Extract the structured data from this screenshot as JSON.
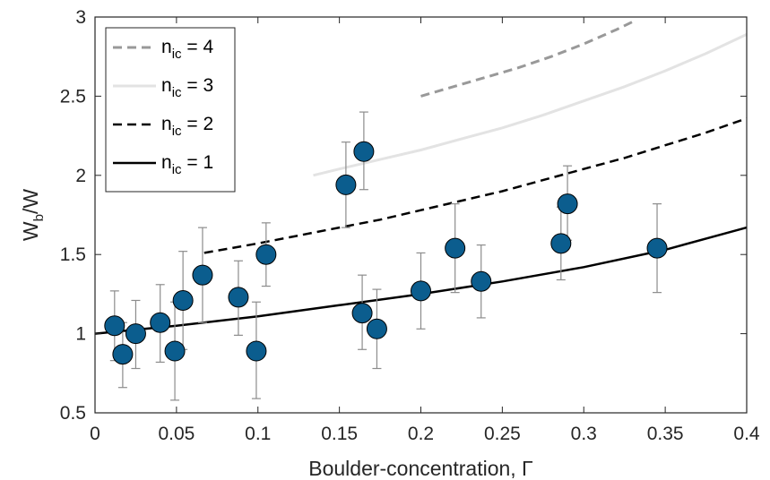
{
  "chart_data": {
    "type": "scatter",
    "xlabel": "Boulder-concentration, Γ",
    "ylabel": {
      "main": "W",
      "sub": "b",
      "tail": "/W"
    },
    "xlim": [
      0,
      0.4
    ],
    "ylim": [
      0.5,
      3
    ],
    "xticks": [
      0,
      0.05,
      0.1,
      0.15,
      0.2,
      0.25,
      0.3,
      0.35,
      0.4
    ],
    "xtick_labels": [
      "0",
      "0.05",
      "0.1",
      "0.15",
      "0.2",
      "0.25",
      "0.3",
      "0.35",
      "0.4"
    ],
    "yticks": [
      0.5,
      1,
      1.5,
      2,
      2.5,
      3
    ],
    "ytick_labels": [
      "0.5",
      "1",
      "1.5",
      "2",
      "2.5",
      "3"
    ],
    "grid": false,
    "legend_position": "top-left",
    "marker_color": "#0b5d8e",
    "errorbar_color": "#8c8c8c",
    "points": [
      {
        "x": 0.012,
        "y": 1.05,
        "lo": 0.83,
        "hi": 1.27
      },
      {
        "x": 0.017,
        "y": 0.87,
        "lo": 0.66,
        "hi": 1.07
      },
      {
        "x": 0.025,
        "y": 1.0,
        "lo": 0.78,
        "hi": 1.21
      },
      {
        "x": 0.04,
        "y": 1.07,
        "lo": 0.82,
        "hi": 1.31
      },
      {
        "x": 0.049,
        "y": 0.89,
        "lo": 0.58,
        "hi": 1.2
      },
      {
        "x": 0.054,
        "y": 1.21,
        "lo": 0.9,
        "hi": 1.52
      },
      {
        "x": 0.066,
        "y": 1.37,
        "lo": 1.07,
        "hi": 1.67
      },
      {
        "x": 0.088,
        "y": 1.23,
        "lo": 0.99,
        "hi": 1.46
      },
      {
        "x": 0.099,
        "y": 0.89,
        "lo": 0.59,
        "hi": 1.2
      },
      {
        "x": 0.105,
        "y": 1.5,
        "lo": 1.3,
        "hi": 1.7
      },
      {
        "x": 0.154,
        "y": 1.94,
        "lo": 1.67,
        "hi": 2.21
      },
      {
        "x": 0.164,
        "y": 1.13,
        "lo": 0.9,
        "hi": 1.37
      },
      {
        "x": 0.165,
        "y": 2.15,
        "lo": 1.91,
        "hi": 2.4
      },
      {
        "x": 0.173,
        "y": 1.03,
        "lo": 0.78,
        "hi": 1.28
      },
      {
        "x": 0.2,
        "y": 1.27,
        "lo": 1.03,
        "hi": 1.51
      },
      {
        "x": 0.221,
        "y": 1.54,
        "lo": 1.26,
        "hi": 1.82
      },
      {
        "x": 0.237,
        "y": 1.33,
        "lo": 1.1,
        "hi": 1.56
      },
      {
        "x": 0.286,
        "y": 1.57,
        "lo": 1.34,
        "hi": 1.8
      },
      {
        "x": 0.29,
        "y": 1.82,
        "lo": 1.59,
        "hi": 2.06
      },
      {
        "x": 0.345,
        "y": 1.54,
        "lo": 1.26,
        "hi": 1.82
      }
    ],
    "series": [
      {
        "name": "n_ic = 4",
        "n_ic": 4,
        "label": {
          "pre": "n",
          "sub": "ic",
          "post": " = 4"
        },
        "color": "#999999",
        "dash": "dashed",
        "stroke": 3,
        "x": [
          0.2,
          0.22,
          0.24,
          0.26,
          0.28,
          0.3,
          0.32,
          0.33
        ],
        "y": [
          2.5,
          2.56,
          2.62,
          2.68,
          2.75,
          2.83,
          2.92,
          2.97
        ]
      },
      {
        "name": "n_ic = 3",
        "n_ic": 3,
        "label": {
          "pre": "n",
          "sub": "ic",
          "post": " = 3"
        },
        "color": "#e3e3e3",
        "dash": "solid",
        "stroke": 3,
        "x": [
          0.134,
          0.15,
          0.175,
          0.2,
          0.225,
          0.25,
          0.275,
          0.3,
          0.325,
          0.35,
          0.375,
          0.4
        ],
        "y": [
          2.0,
          2.04,
          2.1,
          2.16,
          2.23,
          2.3,
          2.38,
          2.47,
          2.56,
          2.66,
          2.77,
          2.89
        ]
      },
      {
        "name": "n_ic = 2",
        "n_ic": 2,
        "label": {
          "pre": "n",
          "sub": "ic",
          "post": " = 2"
        },
        "color": "#000000",
        "dash": "dashed",
        "stroke": 2.5,
        "x": [
          0.067,
          0.1,
          0.125,
          0.15,
          0.175,
          0.2,
          0.225,
          0.25,
          0.275,
          0.3,
          0.325,
          0.35,
          0.375,
          0.4
        ],
        "y": [
          1.51,
          1.57,
          1.62,
          1.67,
          1.72,
          1.78,
          1.84,
          1.9,
          1.97,
          2.04,
          2.11,
          2.19,
          2.27,
          2.36
        ]
      },
      {
        "name": "n_ic = 1",
        "n_ic": 1,
        "label": {
          "pre": "n",
          "sub": "ic",
          "post": " = 1"
        },
        "color": "#000000",
        "dash": "solid",
        "stroke": 2.5,
        "x": [
          0,
          0.05,
          0.1,
          0.15,
          0.2,
          0.25,
          0.3,
          0.35,
          0.4
        ],
        "y": [
          1.0,
          1.05,
          1.11,
          1.18,
          1.25,
          1.33,
          1.42,
          1.53,
          1.67
        ]
      }
    ]
  }
}
